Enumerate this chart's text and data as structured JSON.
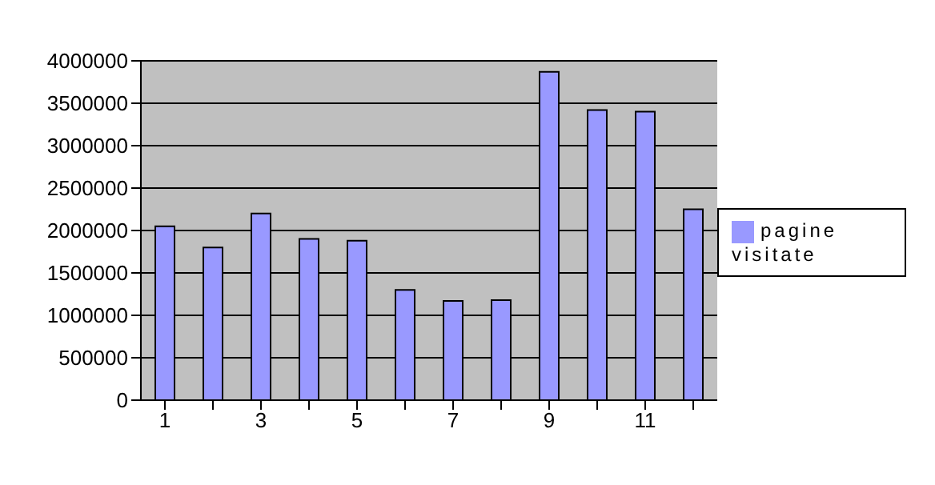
{
  "chart_data": {
    "type": "bar",
    "categories": [
      "1",
      null,
      "3",
      null,
      "5",
      null,
      "7",
      null,
      "9",
      null,
      "11",
      null
    ],
    "series": [
      {
        "name": "pagine visitate",
        "color": "#9999ff",
        "values": [
          2050000,
          1800000,
          2200000,
          1900000,
          1880000,
          1300000,
          1170000,
          1180000,
          3870000,
          3420000,
          3400000,
          2250000
        ]
      }
    ],
    "ylim": [
      0,
      4000000
    ],
    "yticks": [
      0,
      500000,
      1000000,
      1500000,
      2000000,
      2500000,
      3000000,
      3500000,
      4000000
    ],
    "grid": "y",
    "legend": "right"
  }
}
